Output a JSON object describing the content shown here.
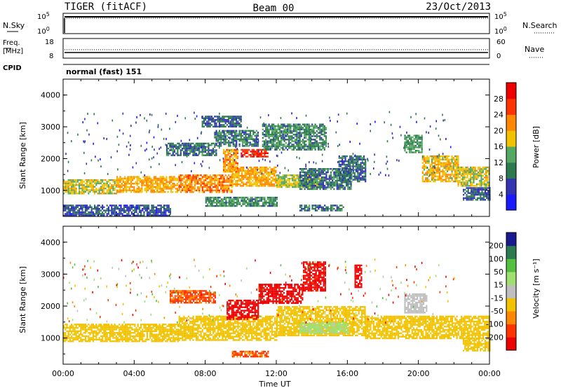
{
  "header": {
    "station": "TIGER (fitACF)",
    "beam": "Beam 00",
    "date": "23/Oct/2013"
  },
  "noise_panel": {
    "left_label": "N.Sky",
    "right_label": "N.Search",
    "left_ticks": [
      "10^5",
      "10^0"
    ],
    "right_ticks": [
      "10^5",
      "10^0"
    ]
  },
  "freq_panel": {
    "left_label_top": "Freq.",
    "left_label_bottom": "[MHz]",
    "right_label": "Nave",
    "left_ticks": [
      "18",
      "8"
    ],
    "right_ticks": [
      "60",
      "0"
    ]
  },
  "cpid": {
    "label": "CPID",
    "mode": "normal (fast) 151"
  },
  "colors": {
    "power": [
      "#1a1aff",
      "#3333b3",
      "#2e7a50",
      "#55a861",
      "#f2c200",
      "#ff8800",
      "#ff3300",
      "#ee0000"
    ],
    "velocity": [
      "#ee0000",
      "#ff3300",
      "#ff8800",
      "#f2c200",
      "#bfbfbf",
      "#a0e070",
      "#55c040",
      "#2e7a50",
      "#1a1a90"
    ]
  },
  "chart_data": [
    {
      "type": "heatmap",
      "name": "power",
      "ylabel": "Slant Range [km]",
      "xlim": [
        0,
        24
      ],
      "ylim": [
        180,
        4500
      ],
      "yticks": [
        1000,
        2000,
        3000,
        4000
      ],
      "colorbar": {
        "label": "Power [dB]",
        "ticks": [
          "4",
          "8",
          "12",
          "16",
          "20",
          "24",
          "28"
        ],
        "range": [
          0,
          32
        ]
      },
      "regions": [
        {
          "t0": 0.0,
          "t1": 3.0,
          "r0": 900,
          "r1": 1350,
          "value": 17
        },
        {
          "t0": 3.0,
          "t1": 6.5,
          "r0": 950,
          "r1": 1450,
          "value": 20
        },
        {
          "t0": 6.5,
          "t1": 9.5,
          "r0": 950,
          "r1": 1500,
          "value": 22
        },
        {
          "t0": 9.5,
          "t1": 12.0,
          "r0": 1150,
          "r1": 1750,
          "value": 20
        },
        {
          "t0": 12.0,
          "t1": 14.5,
          "r0": 1100,
          "r1": 1500,
          "value": 16
        },
        {
          "t0": 10.0,
          "t1": 11.5,
          "r0": 2050,
          "r1": 2300,
          "value": 28
        },
        {
          "t0": 9.0,
          "t1": 9.8,
          "r0": 1600,
          "r1": 2300,
          "value": 21
        },
        {
          "t0": 13.3,
          "t1": 16.2,
          "r0": 1050,
          "r1": 1700,
          "value": 10
        },
        {
          "t0": 5.8,
          "t1": 8.6,
          "r0": 2100,
          "r1": 2500,
          "value": 9
        },
        {
          "t0": 7.8,
          "t1": 10.0,
          "r0": 3000,
          "r1": 3350,
          "value": 8
        },
        {
          "t0": 8.5,
          "t1": 11.0,
          "r0": 2400,
          "r1": 2900,
          "value": 10
        },
        {
          "t0": 11.2,
          "t1": 14.8,
          "r0": 2300,
          "r1": 3100,
          "value": 11
        },
        {
          "t0": 15.5,
          "t1": 17.0,
          "r0": 1300,
          "r1": 2100,
          "value": 9
        },
        {
          "t0": 8.0,
          "t1": 12.0,
          "r0": 500,
          "r1": 800,
          "value": 11
        },
        {
          "t0": 13.3,
          "t1": 15.8,
          "r0": 350,
          "r1": 550,
          "value": 9
        },
        {
          "t0": 0.0,
          "t1": 6.0,
          "r0": 180,
          "r1": 550,
          "value": 7
        },
        {
          "t0": 19.2,
          "t1": 20.2,
          "r0": 2200,
          "r1": 2750,
          "value": 12
        },
        {
          "t0": 20.2,
          "t1": 22.2,
          "r0": 1300,
          "r1": 2100,
          "value": 19
        },
        {
          "t0": 22.2,
          "t1": 24.0,
          "r0": 1150,
          "r1": 1750,
          "value": 17
        },
        {
          "t0": 22.5,
          "t1": 24.0,
          "r0": 700,
          "r1": 1100,
          "value": 8
        }
      ]
    },
    {
      "type": "heatmap",
      "name": "velocity",
      "ylabel": "Slant Range [km]",
      "xlabel": "Time UT",
      "xlim": [
        0,
        24
      ],
      "ylim": [
        180,
        4500
      ],
      "yticks": [
        1000,
        2000,
        3000,
        4000
      ],
      "xticks": [
        "00:00",
        "04:00",
        "08:00",
        "12:00",
        "16:00",
        "20:00",
        "00:00"
      ],
      "colorbar": {
        "label": "Velocity [m s⁻¹]",
        "ticks": [
          "-200",
          "-100",
          "-50",
          "-15",
          "15",
          "50",
          "100",
          "200"
        ],
        "bounds": [
          -250,
          -200,
          -100,
          -50,
          -15,
          15,
          50,
          100,
          200,
          250
        ]
      },
      "regions": [
        {
          "t0": 0.0,
          "t1": 6.5,
          "r0": 900,
          "r1": 1450,
          "value": 0
        },
        {
          "t0": 6.5,
          "t1": 12.0,
          "r0": 950,
          "r1": 1700,
          "value": -5
        },
        {
          "t0": 12.0,
          "t1": 17.0,
          "r0": 1100,
          "r1": 2000,
          "value": 5
        },
        {
          "t0": 9.2,
          "t1": 11.0,
          "r0": 1600,
          "r1": 2200,
          "value": -220
        },
        {
          "t0": 11.0,
          "t1": 13.5,
          "r0": 2100,
          "r1": 2700,
          "value": -180
        },
        {
          "t0": 13.5,
          "t1": 14.8,
          "r0": 2500,
          "r1": 3400,
          "value": -120
        },
        {
          "t0": 13.3,
          "t1": 16.0,
          "r0": 1150,
          "r1": 1500,
          "value": 70
        },
        {
          "t0": 17.0,
          "t1": 24.0,
          "r0": 1000,
          "r1": 1700,
          "value": 3
        },
        {
          "t0": 19.2,
          "t1": 20.5,
          "r0": 1800,
          "r1": 2400,
          "value": 35
        },
        {
          "t0": 22.5,
          "t1": 24.0,
          "r0": 600,
          "r1": 1000,
          "value": 0
        },
        {
          "t0": 6.0,
          "t1": 8.6,
          "r0": 2100,
          "r1": 2500,
          "value": -60
        },
        {
          "t0": 9.5,
          "t1": 11.5,
          "r0": 400,
          "r1": 600,
          "value": -60
        },
        {
          "t0": 16.4,
          "t1": 16.8,
          "r0": 2600,
          "r1": 3300,
          "value": -230
        }
      ]
    }
  ]
}
